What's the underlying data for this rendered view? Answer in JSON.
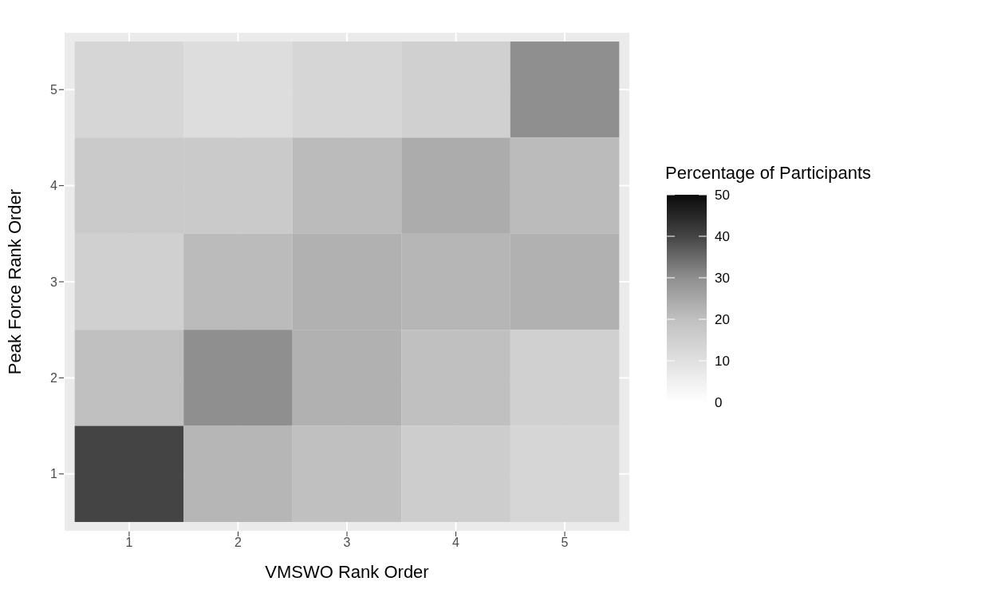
{
  "chart_data": {
    "type": "heatmap",
    "xlabel": "VMSWO Rank Order",
    "ylabel": "Peak Force Rank Order",
    "clabel": "Percentage of Participants",
    "categories": [
      "1",
      "2",
      "3",
      "4",
      "5"
    ],
    "y_categories": [
      "5",
      "4",
      "3",
      "2",
      "1"
    ],
    "cells": [
      [
        13,
        11,
        13,
        15,
        30
      ],
      [
        17,
        17,
        21,
        24,
        21
      ],
      [
        15,
        21,
        23,
        22,
        23
      ],
      [
        20,
        30,
        23,
        20,
        15
      ],
      [
        40,
        22,
        20,
        16,
        13
      ]
    ],
    "clim": [
      0,
      50
    ],
    "cticks": [
      0,
      10,
      20,
      30,
      40,
      50
    ],
    "grid": true
  }
}
